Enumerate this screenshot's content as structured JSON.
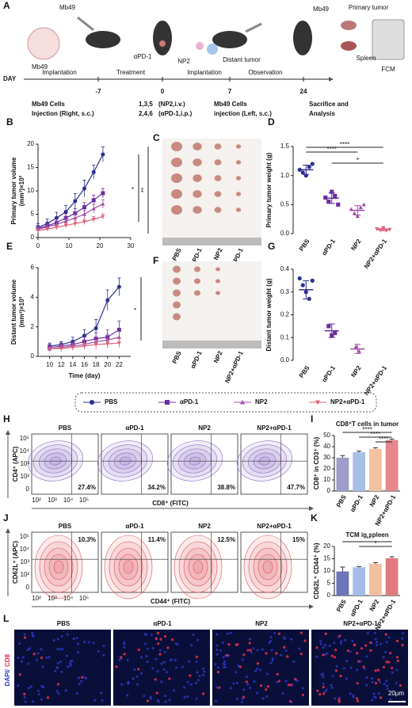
{
  "panel_a": {
    "letter": "A",
    "labels": [
      "Mb49",
      "Mb49",
      "αPD-1",
      "NP2",
      "Implantation",
      "Distant tumor",
      "Mb49",
      "Primary tumor",
      "Spleen",
      "FCM",
      "DAY",
      "Implantation",
      "Treatment",
      "Observation",
      "Mb49 Cells",
      "Injection (Right, s.c.)",
      "1,3,5",
      "(NP2,i.v.)",
      "2,4,6",
      "(αPD-1,i.p.)",
      "Mb49 Cells",
      "injection (Left, s.c.)",
      "Sacrifice and",
      "Analysis"
    ],
    "days": [
      -7,
      0,
      7,
      24
    ]
  },
  "panel_c": {
    "letter": "C",
    "categories": [
      "PBS",
      "αPD-1",
      "NP2",
      "NP2+αPD-1"
    ]
  },
  "panel_f": {
    "letter": "F",
    "categories": [
      "PBS",
      "αPD-1",
      "NP2",
      "NP2+αPD-1"
    ]
  },
  "panel_h": {
    "letter": "H",
    "samples": [
      "PBS",
      "αPD-1",
      "NP2",
      "NP2+αPD-1"
    ],
    "percents": [
      "27.4%",
      "34.2%",
      "38.8%",
      "47.7%"
    ],
    "y_label": "CD4⁺ (APC)",
    "x_label": "CD8⁺ (FITC)",
    "y_ticks": [
      "10⁵",
      "10⁴",
      "10³",
      "10²",
      "0"
    ],
    "x_ticks": [
      "10²",
      "10³",
      "10⁴",
      "10⁵"
    ]
  },
  "panel_j": {
    "letter": "J",
    "samples": [
      "PBS",
      "αPD-1",
      "NP2",
      "NP2+αPD-1"
    ],
    "percents": [
      "10.3%",
      "11.4%",
      "12.5%",
      "15%"
    ],
    "y_label": "CD62L⁺ (APC)",
    "x_label": "CD44⁺ (FITC)",
    "y_ticks": [
      "10⁵",
      "10⁴",
      "10³",
      "10²",
      "0"
    ],
    "x_ticks": [
      "10²",
      "10³",
      "10⁴",
      "10⁵"
    ]
  },
  "panel_l": {
    "letter": "L",
    "samples": [
      "PBS",
      "αPD-1",
      "NP2",
      "NP2+αPD-1"
    ],
    "stain_a": "DAPI/",
    "stain_b": "CD8",
    "scale_bar": "20μm"
  },
  "chart_data": [
    {
      "panel": "B",
      "type": "line",
      "y_label": "Primary tumor volume",
      "y_unit": "(mm³)×10²",
      "x": [
        0,
        3,
        6,
        9,
        12,
        15,
        18,
        21
      ],
      "xlim": [
        0,
        30
      ],
      "xticks": [
        0,
        10,
        20,
        30
      ],
      "ylim": [
        0,
        20
      ],
      "yticks": [
        0,
        5,
        10,
        15,
        20
      ],
      "annotations": [
        "*",
        "**"
      ],
      "series": [
        {
          "name": "PBS",
          "color": "#2b2f8f",
          "marker": "circle",
          "values": [
            2.2,
            3.0,
            4.2,
            5.5,
            7.8,
            10.5,
            14.0,
            17.8
          ],
          "errors": [
            0.8,
            1.0,
            1.2,
            1.4,
            1.6,
            1.8,
            1.5,
            1.6
          ]
        },
        {
          "name": "αPD-1",
          "color": "#6a2fa0",
          "marker": "square",
          "values": [
            2.0,
            2.5,
            3.2,
            4.2,
            5.2,
            6.5,
            8.0,
            9.5
          ],
          "errors": [
            0.6,
            0.7,
            0.8,
            0.9,
            1.0,
            1.0,
            1.1,
            1.0
          ]
        },
        {
          "name": "NP2",
          "color": "#a04ca8",
          "marker": "triangle",
          "values": [
            1.8,
            2.3,
            2.8,
            3.5,
            4.2,
            5.0,
            6.2,
            7.2
          ],
          "errors": [
            0.5,
            0.6,
            0.6,
            0.7,
            0.8,
            0.8,
            0.9,
            0.9
          ]
        },
        {
          "name": "NP2+αPD-1",
          "color": "#e0607a",
          "marker": "triangle-down",
          "values": [
            1.5,
            1.8,
            2.2,
            2.6,
            3.0,
            3.4,
            3.9,
            4.5
          ],
          "errors": [
            0.4,
            0.4,
            0.5,
            0.5,
            0.6,
            0.6,
            0.6,
            0.6
          ]
        }
      ]
    },
    {
      "panel": "D",
      "type": "dot",
      "y_label": "Primary tumor weight (g)",
      "categories": [
        "PBS",
        "αPD-1",
        "NP2",
        "NP2+αPD-1"
      ],
      "colors": [
        "#2b2f8f",
        "#6a2fa0",
        "#a04ca8",
        "#e0607a"
      ],
      "markers": [
        "circle",
        "square",
        "triangle",
        "triangle-down"
      ],
      "ylim": [
        0,
        1.5
      ],
      "yticks": [
        {
          "value": 0,
          "label": "0.0"
        },
        0.5,
        {
          "value": 1,
          "label": "1.0"
        },
        1.5
      ],
      "values": [
        [
          1.1,
          1.05,
          1.0,
          1.15,
          1.2
        ],
        [
          0.62,
          0.55,
          0.72,
          0.65,
          0.5
        ],
        [
          0.42,
          0.35,
          0.3,
          0.45,
          0.5
        ],
        [
          0.08,
          0.06,
          0.1,
          0.05,
          0.07
        ]
      ],
      "means": [
        1.1,
        0.61,
        0.4,
        0.07
      ],
      "errors": [
        0.08,
        0.09,
        0.08,
        0.02
      ],
      "significance": [
        "****",
        "****",
        "*"
      ]
    },
    {
      "panel": "E",
      "type": "line",
      "y_label": "Distant tumor volume",
      "y_unit": "(mm³)×10²",
      "x_label": "Time (day)",
      "x": [
        10,
        12,
        14,
        16,
        18,
        20,
        22
      ],
      "xlim": [
        8,
        24
      ],
      "xticks": [
        10,
        12,
        14,
        16,
        18,
        20,
        22
      ],
      "ylim": [
        0,
        6
      ],
      "yticks": [
        0,
        2,
        4,
        6
      ],
      "annotations": [
        "*"
      ],
      "series": [
        {
          "name": "PBS",
          "color": "#2b2f8f",
          "marker": "circle",
          "values": [
            0.7,
            0.8,
            1.0,
            1.4,
            1.9,
            3.8,
            4.7
          ],
          "errors": [
            0.2,
            0.2,
            0.3,
            0.4,
            0.6,
            0.7,
            0.6
          ]
        },
        {
          "name": "αPD-1",
          "color": "#6a2fa0",
          "marker": "square",
          "values": [
            0.6,
            0.7,
            0.8,
            1.0,
            1.2,
            1.3,
            1.8
          ],
          "errors": [
            0.2,
            0.2,
            0.3,
            0.3,
            0.4,
            0.5,
            0.6
          ]
        },
        {
          "name": "NP2",
          "color": "#a04ca8",
          "marker": "triangle",
          "values": [
            0.5,
            0.6,
            0.7,
            0.8,
            1.0,
            1.1,
            1.3
          ],
          "errors": [
            0.2,
            0.2,
            0.2,
            0.3,
            0.3,
            0.4,
            0.4
          ]
        },
        {
          "name": "NP2+αPD-1",
          "color": "#e0607a",
          "marker": "triangle-down",
          "values": [
            0.5,
            0.55,
            0.6,
            0.7,
            0.8,
            0.85,
            0.9
          ],
          "errors": [
            0.1,
            0.2,
            0.2,
            0.2,
            0.3,
            0.3,
            0.3
          ]
        }
      ]
    },
    {
      "panel": "G",
      "type": "dot",
      "y_label": "Distant tumor weight (g)",
      "categories": [
        "PBS",
        "αPD-1",
        "NP2",
        "NP2+αPD-1"
      ],
      "colors": [
        "#2b2f8f",
        "#6a2fa0",
        "#a04ca8",
        "#e0607a"
      ],
      "markers": [
        "circle",
        "square",
        "triangle",
        "triangle-down"
      ],
      "ylim": [
        0,
        0.4
      ],
      "yticks": [
        {
          "value": 0,
          "label": "0.0"
        },
        0.1,
        0.2,
        0.3,
        0.4
      ],
      "values": [
        [
          0.36,
          0.33,
          0.3,
          0.27,
          0.35
        ],
        [
          0.15,
          0.11,
          0.12
        ],
        [
          0.06,
          0.04
        ],
        []
      ],
      "means": [
        0.31,
        0.13,
        0.05,
        null
      ],
      "errors": [
        0.04,
        0.03,
        0.02,
        null
      ],
      "significance": []
    },
    {
      "panel": "I",
      "type": "bar",
      "title": "CD8⁺T cells in tumor",
      "y_label": "CD8⁺ in CD3⁺ (%)",
      "categories": [
        "PBS",
        "αPD-1",
        "NP2",
        "NP2+αPD-1"
      ],
      "colors": [
        "#9d9dc8",
        "#a9c0e6",
        "#f2c2a0",
        "#e4868a"
      ],
      "values": [
        30,
        35,
        38,
        46
      ],
      "errors": [
        2,
        1,
        1,
        1
      ],
      "ylim": [
        0,
        50
      ],
      "yticks": [
        0,
        10,
        20,
        30,
        40,
        50
      ],
      "significance": [
        "****",
        "****",
        "****"
      ]
    },
    {
      "panel": "K",
      "type": "bar",
      "title": "TCM in spleen",
      "y_label": "CD62L⁺ CD44⁺ (%)",
      "categories": [
        "PBS",
        "αPD-1",
        "NP2",
        "NP2+αPD-1"
      ],
      "colors": [
        "#6d74b8",
        "#a6bce6",
        "#f0c0a0",
        "#e07a80"
      ],
      "values": [
        9.8,
        11.5,
        13.0,
        15.2
      ],
      "errors": [
        1.8,
        0.3,
        0.4,
        0.6
      ],
      "ylim": [
        0,
        20
      ],
      "yticks": [
        0,
        5,
        10,
        15,
        20
      ],
      "significance": [
        "***",
        "*"
      ]
    }
  ]
}
